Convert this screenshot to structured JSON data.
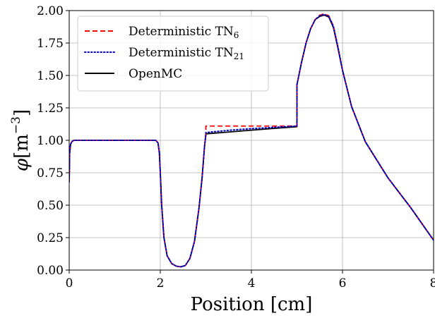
{
  "chart_data": {
    "type": "line",
    "title": "",
    "xlabel": "Position [cm]",
    "ylabel_symbol": "φ",
    "ylabel_unit": "[m",
    "ylabel_exponent": "−3",
    "ylabel_close": "]",
    "xlim": [
      0,
      8
    ],
    "ylim": [
      0,
      2
    ],
    "grid": true,
    "legend_position": "top-left",
    "x_ticks": [
      0,
      2,
      4,
      6,
      8
    ],
    "x_tick_labels": [
      "0",
      "2",
      "4",
      "6",
      "8"
    ],
    "y_ticks": [
      0,
      0.25,
      0.5,
      0.75,
      1.0,
      1.25,
      1.5,
      1.75,
      2.0
    ],
    "y_tick_labels": [
      "0.00",
      "0.25",
      "0.50",
      "0.75",
      "1.00",
      "1.25",
      "1.50",
      "1.75",
      "2.00"
    ],
    "series": [
      {
        "name": "Deterministic TN",
        "name_subscript": "6",
        "color": "#ff0000",
        "style": "dashed",
        "x": [
          0,
          0.01,
          0.03,
          0.06,
          0.1,
          0.2,
          0.5,
          1.0,
          1.5,
          1.9,
          1.95,
          1.98,
          2.0,
          2.03,
          2.08,
          2.15,
          2.25,
          2.35,
          2.45,
          2.55,
          2.65,
          2.75,
          2.85,
          2.92,
          2.97,
          3.0,
          3.001,
          3.5,
          4.0,
          4.5,
          5.0,
          5.001,
          5.1,
          5.2,
          5.3,
          5.4,
          5.5,
          5.6,
          5.7,
          5.8,
          5.9,
          6.0,
          6.2,
          6.5,
          7.0,
          7.5,
          8.0
        ],
        "y": [
          0.68,
          0.9,
          0.97,
          0.99,
          1.0,
          1.0,
          1.0,
          1.0,
          1.0,
          1.0,
          0.98,
          0.9,
          0.75,
          0.5,
          0.25,
          0.11,
          0.05,
          0.03,
          0.025,
          0.035,
          0.09,
          0.22,
          0.48,
          0.72,
          0.95,
          1.05,
          1.11,
          1.11,
          1.11,
          1.11,
          1.11,
          1.43,
          1.6,
          1.75,
          1.86,
          1.93,
          1.965,
          1.975,
          1.96,
          1.88,
          1.72,
          1.54,
          1.26,
          0.99,
          0.71,
          0.48,
          0.23
        ]
      },
      {
        "name": "Deterministic TN",
        "name_subscript": "21",
        "color": "#0000cc",
        "style": "dotted",
        "x": [
          0,
          0.01,
          0.03,
          0.06,
          0.1,
          0.2,
          0.5,
          1.0,
          1.5,
          1.9,
          1.95,
          1.98,
          2.0,
          2.03,
          2.08,
          2.15,
          2.25,
          2.35,
          2.45,
          2.55,
          2.65,
          2.75,
          2.85,
          2.92,
          2.97,
          3.0,
          3.001,
          3.5,
          4.0,
          4.5,
          5.0,
          5.001,
          5.1,
          5.2,
          5.3,
          5.4,
          5.5,
          5.6,
          5.7,
          5.8,
          5.9,
          6.0,
          6.2,
          6.5,
          7.0,
          7.5,
          8.0
        ],
        "y": [
          0.68,
          0.9,
          0.97,
          0.99,
          1.0,
          1.0,
          1.0,
          1.0,
          1.0,
          1.0,
          0.98,
          0.9,
          0.75,
          0.5,
          0.25,
          0.11,
          0.05,
          0.03,
          0.025,
          0.035,
          0.09,
          0.22,
          0.48,
          0.72,
          0.95,
          1.05,
          1.06,
          1.077,
          1.09,
          1.1,
          1.11,
          1.43,
          1.6,
          1.75,
          1.86,
          1.93,
          1.96,
          1.97,
          1.955,
          1.88,
          1.72,
          1.54,
          1.26,
          0.99,
          0.71,
          0.48,
          0.23
        ]
      },
      {
        "name": "OpenMC",
        "name_subscript": "",
        "color": "#000000",
        "style": "solid",
        "x": [
          0,
          0.01,
          0.03,
          0.06,
          0.1,
          0.2,
          0.5,
          1.0,
          1.5,
          1.9,
          1.95,
          1.98,
          2.0,
          2.03,
          2.08,
          2.15,
          2.25,
          2.35,
          2.45,
          2.55,
          2.65,
          2.75,
          2.85,
          2.92,
          2.97,
          3.0,
          3.001,
          3.5,
          4.0,
          4.5,
          5.0,
          5.001,
          5.1,
          5.2,
          5.3,
          5.4,
          5.5,
          5.6,
          5.7,
          5.8,
          5.9,
          6.0,
          6.2,
          6.5,
          7.0,
          7.5,
          8.0
        ],
        "y": [
          0.68,
          0.9,
          0.97,
          0.99,
          1.0,
          1.0,
          1.0,
          1.0,
          1.0,
          1.0,
          0.98,
          0.9,
          0.75,
          0.5,
          0.25,
          0.11,
          0.05,
          0.03,
          0.025,
          0.035,
          0.09,
          0.22,
          0.48,
          0.72,
          0.95,
          1.04,
          1.05,
          1.064,
          1.078,
          1.092,
          1.105,
          1.43,
          1.6,
          1.75,
          1.86,
          1.93,
          1.955,
          1.965,
          1.95,
          1.87,
          1.71,
          1.54,
          1.26,
          0.99,
          0.71,
          0.48,
          0.23
        ]
      }
    ]
  }
}
